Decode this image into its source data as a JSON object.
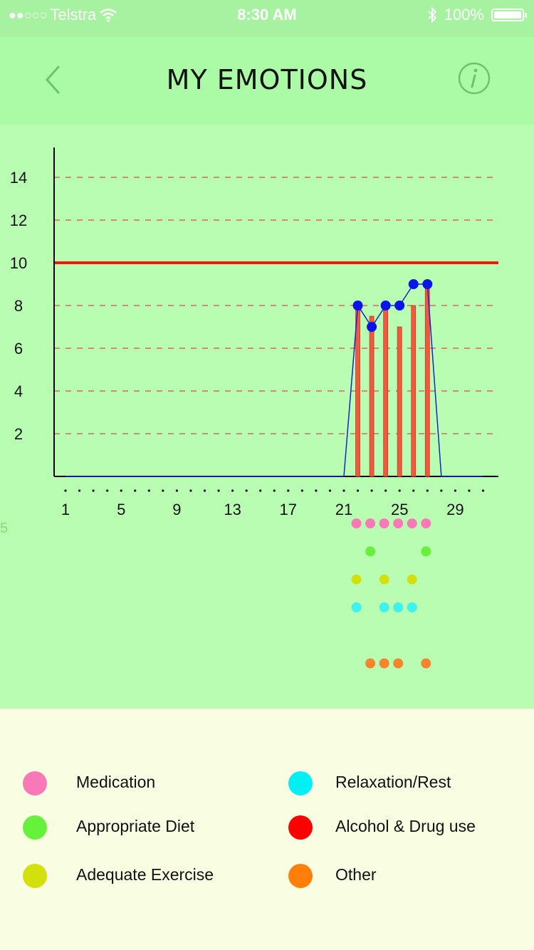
{
  "status_bar": {
    "carrier": "Telstra",
    "time": "8:30 AM",
    "battery": "100%"
  },
  "header": {
    "title": "MY EMOTIONS",
    "back_icon": "chevron-left-icon",
    "info_icon": "info-icon"
  },
  "side_marker": "5",
  "chart_data": {
    "type": "bar",
    "title": "",
    "xlabel": "",
    "ylabel": "",
    "ylim": [
      0,
      15
    ],
    "xlim": [
      1,
      31
    ],
    "y_ticks": [
      "2",
      "4",
      "6",
      "8",
      "10",
      "12",
      "14"
    ],
    "x_ticks": [
      "1",
      "5",
      "9",
      "13",
      "17",
      "21",
      "25",
      "29"
    ],
    "grid": "dashed horizontal",
    "threshold_line": 10,
    "colors": {
      "bars": "#f05a3c",
      "line": "#1a23c8",
      "points": "#0a14e6",
      "threshold": "#e81e0a",
      "grid": "#d36a62"
    },
    "bars": [
      {
        "x": 22,
        "value": 8
      },
      {
        "x": 23,
        "value": 7.5
      },
      {
        "x": 24,
        "value": 8
      },
      {
        "x": 25,
        "value": 7
      },
      {
        "x": 26,
        "value": 8
      },
      {
        "x": 27,
        "value": 9
      }
    ],
    "line": [
      {
        "x": 1,
        "value": 0
      },
      {
        "x": 21,
        "value": 0
      },
      {
        "x": 22,
        "value": 8
      },
      {
        "x": 23,
        "value": 7
      },
      {
        "x": 24,
        "value": 8
      },
      {
        "x": 25,
        "value": 8
      },
      {
        "x": 26,
        "value": 9
      },
      {
        "x": 27,
        "value": 9
      },
      {
        "x": 28,
        "value": 0
      },
      {
        "x": 31,
        "value": 0
      }
    ],
    "points": [
      {
        "x": 22,
        "value": 8
      },
      {
        "x": 23,
        "value": 7
      },
      {
        "x": 24,
        "value": 8
      },
      {
        "x": 25,
        "value": 8
      },
      {
        "x": 26,
        "value": 9
      },
      {
        "x": 27,
        "value": 9
      }
    ],
    "factor_rows": [
      {
        "name": "Medication",
        "color": "#f878b8",
        "days": [
          22,
          23,
          24,
          25,
          26,
          27
        ]
      },
      {
        "name": "Appropriate Diet",
        "color": "#66f23a",
        "days": [
          23,
          27
        ]
      },
      {
        "name": "Adequate Exercise",
        "color": "#d4e00c",
        "days": [
          22,
          24,
          26
        ]
      },
      {
        "name": "Relaxation/Rest",
        "color": "#3ef2ee",
        "days": [
          22,
          24,
          25,
          26
        ]
      },
      {
        "name": "Alcohol & Drug use",
        "color": "#ff0000",
        "days": []
      },
      {
        "name": "Other",
        "color": "#f5842c",
        "days": [
          23,
          24,
          25,
          27
        ]
      }
    ]
  },
  "legend": {
    "items": [
      {
        "label": "Medication",
        "color": "#f878b8"
      },
      {
        "label": "Appropriate Diet",
        "color": "#66f23a"
      },
      {
        "label": "Adequate Exercise",
        "color": "#d4e00c"
      },
      {
        "label": "Relaxation/Rest",
        "color": "#00f0f4"
      },
      {
        "label": "Alcohol & Drug use",
        "color": "#ff0000"
      },
      {
        "label": "Other",
        "color": "#ff7f0a"
      }
    ]
  }
}
